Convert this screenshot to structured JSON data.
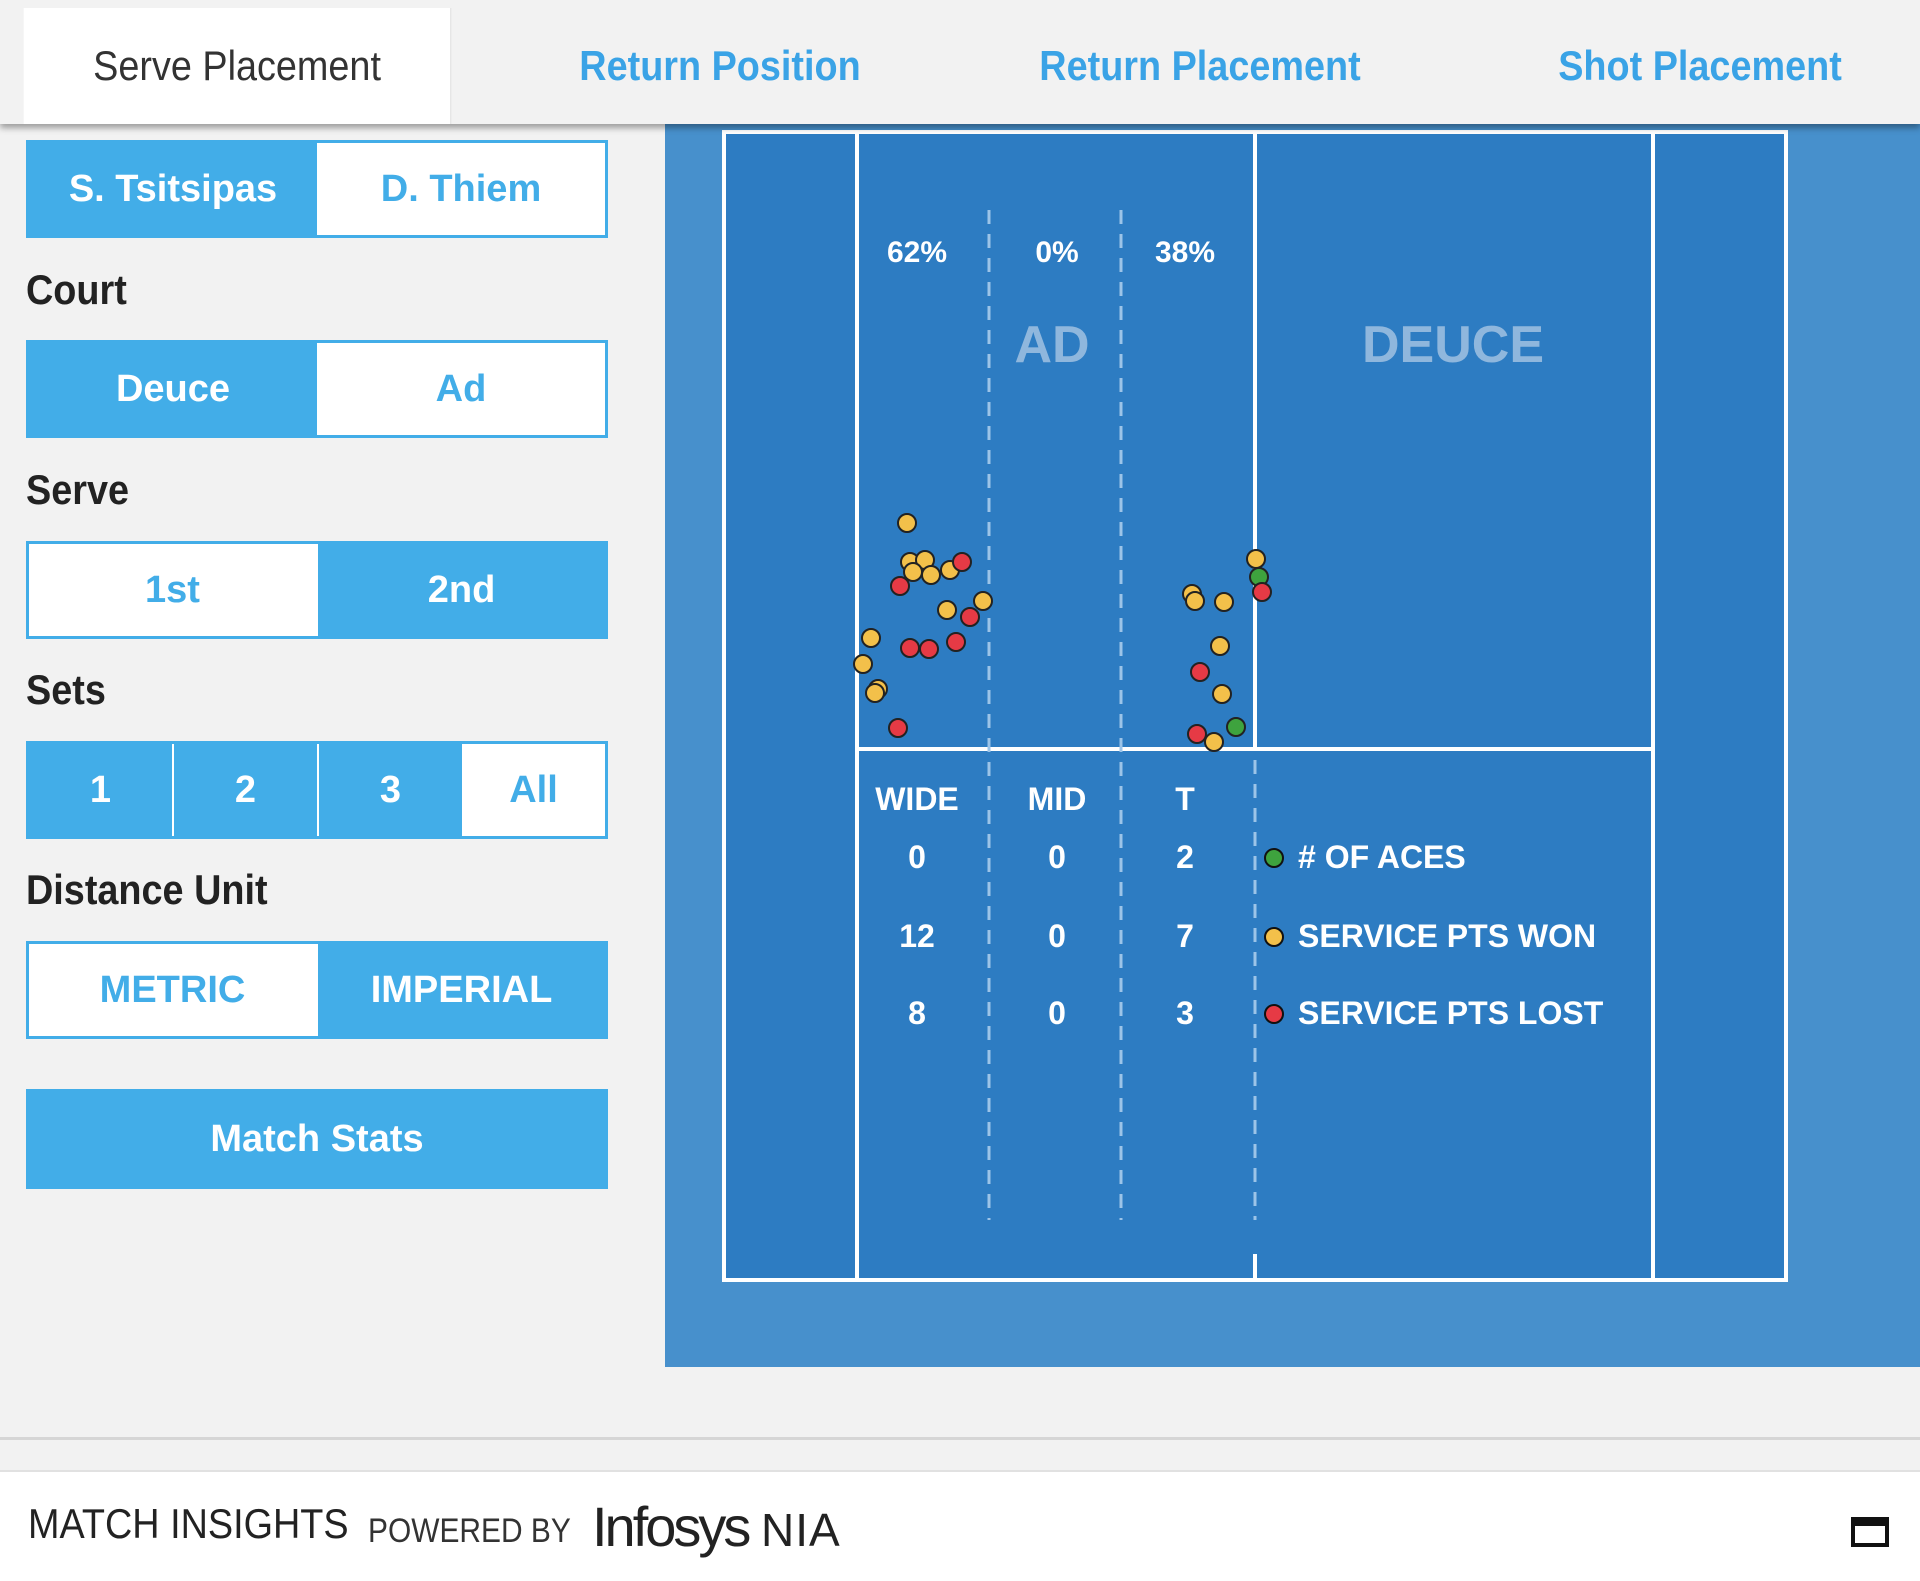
{
  "tabs": [
    {
      "label": "Serve Placement",
      "active": true
    },
    {
      "label": "Return Position",
      "active": false
    },
    {
      "label": "Return Placement",
      "active": false
    },
    {
      "label": "Shot Placement",
      "active": false
    }
  ],
  "players": {
    "a": "S. Tsitsipas",
    "b": "D. Thiem",
    "selected": "S. Tsitsipas"
  },
  "court_filter": {
    "label": "Court",
    "options": [
      "Deuce",
      "Ad"
    ],
    "selected": "Deuce"
  },
  "serve_filter": {
    "label": "Serve",
    "options": [
      "1st",
      "2nd"
    ],
    "selected": "2nd"
  },
  "sets_filter": {
    "label": "Sets",
    "options": [
      "1",
      "2",
      "3",
      "All"
    ],
    "selected": [
      "1",
      "2",
      "3"
    ]
  },
  "distance_unit": {
    "label": "Distance Unit",
    "options": [
      "METRIC",
      "IMPERIAL"
    ],
    "selected": "IMPERIAL"
  },
  "match_stats_label": "Match Stats",
  "court": {
    "percentages": {
      "wide": "62%",
      "mid": "0%",
      "t": "38%"
    },
    "ad_label": "AD",
    "deuce_label": "DEUCE",
    "zones": {
      "wide": "WIDE",
      "mid": "MID",
      "t": "T"
    },
    "stats": {
      "aces": {
        "wide": "0",
        "mid": "0",
        "t": "2"
      },
      "won": {
        "wide": "12",
        "mid": "0",
        "t": "7"
      },
      "lost": {
        "wide": "8",
        "mid": "0",
        "t": "3"
      }
    },
    "legend": {
      "aces": "# OF ACES",
      "won": "SERVICE PTS WON",
      "lost": "SERVICE PTS LOST"
    }
  },
  "colors": {
    "accent": "#42ade8",
    "court": "#2d7cc2",
    "court_outer": "#4790cc",
    "ace": "#3ea33e",
    "won": "#f3c04a",
    "lost": "#e63a45"
  },
  "footer": {
    "match_insights": "MATCH INSIGHTS",
    "powered_by": "POWERED BY",
    "brand": "Infosys",
    "brand_suffix": "NIA"
  }
}
